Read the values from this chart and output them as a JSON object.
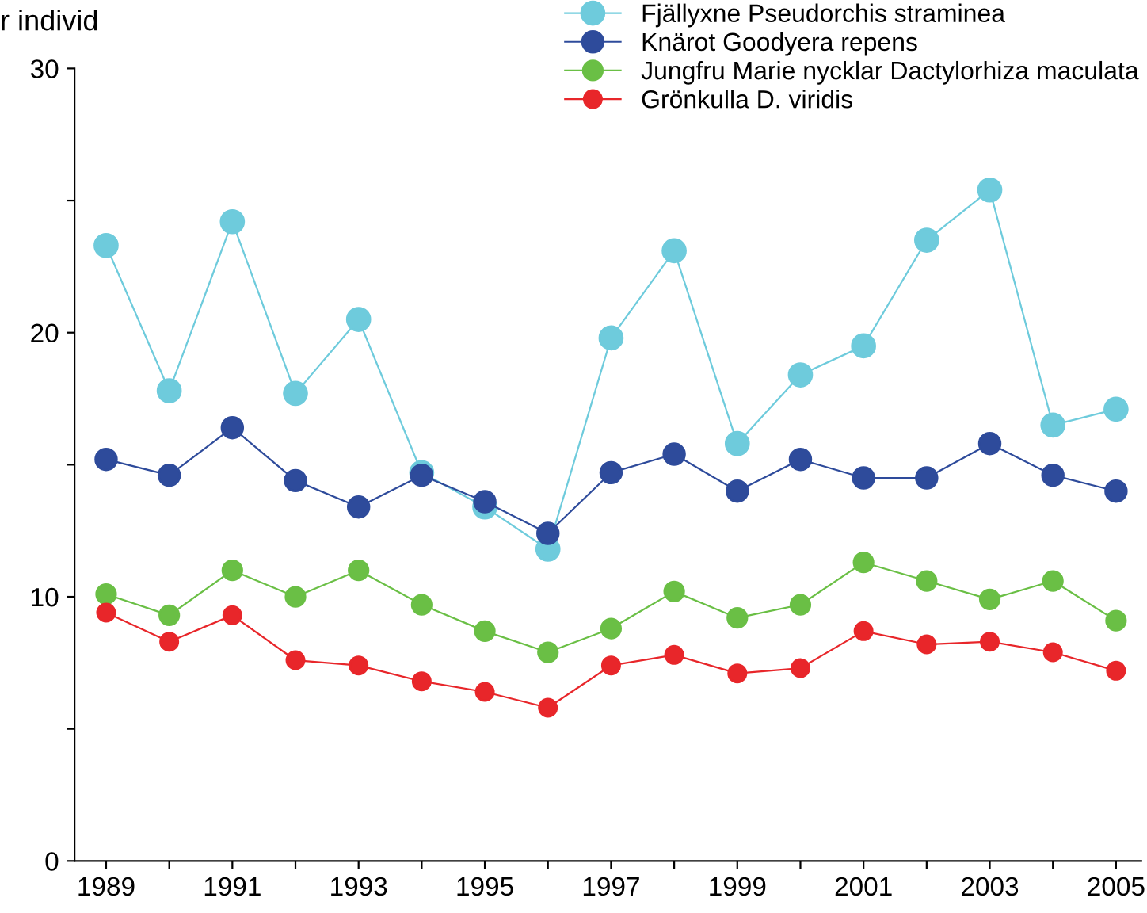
{
  "chart_data": {
    "type": "line",
    "ylabel": "r individ",
    "x": [
      1989,
      1990,
      1991,
      1992,
      1993,
      1994,
      1995,
      1996,
      1997,
      1998,
      1999,
      2000,
      2001,
      2002,
      2003,
      2004,
      2005
    ],
    "series": [
      {
        "name": "Fjällyxne Pseudorchis straminea",
        "color": "#6ecbdc",
        "values": [
          23.3,
          17.8,
          24.2,
          17.7,
          20.5,
          14.7,
          13.4,
          11.8,
          19.8,
          23.1,
          15.8,
          18.4,
          19.5,
          23.5,
          25.4,
          16.5,
          17.1
        ]
      },
      {
        "name": "Knärot Goodyera repens",
        "color": "#2e4b9b",
        "values": [
          15.2,
          14.6,
          16.4,
          14.4,
          13.4,
          14.6,
          13.6,
          12.4,
          14.7,
          15.4,
          14.0,
          15.2,
          14.5,
          14.5,
          15.8,
          14.6,
          14.0
        ]
      },
      {
        "name": "Jungfru Marie nycklar Dactylorhiza maculata",
        "color": "#6abf45",
        "values": [
          10.1,
          9.3,
          11.0,
          10.0,
          11.0,
          9.7,
          8.7,
          7.9,
          8.8,
          10.2,
          9.2,
          9.7,
          11.3,
          10.6,
          9.9,
          10.6,
          9.1
        ]
      },
      {
        "name": "Grönkulla D. viridis",
        "color": "#e8262a",
        "values": [
          9.4,
          8.3,
          9.3,
          7.6,
          7.4,
          6.8,
          6.4,
          5.8,
          7.4,
          7.8,
          7.1,
          7.3,
          8.7,
          8.2,
          8.3,
          7.9,
          7.2
        ]
      }
    ],
    "xlim": [
      1988.5,
      2005.4
    ],
    "ylim": [
      0,
      30
    ],
    "xticks": [
      1989,
      {
        "value": 1990,
        "label": null
      },
      1991,
      {
        "value": 1992,
        "label": null
      },
      1993,
      {
        "value": 1994,
        "label": null
      },
      1995,
      {
        "value": 1996,
        "label": null
      },
      1997,
      {
        "value": 1998,
        "label": null
      },
      1999,
      {
        "value": 2000,
        "label": null
      },
      2001,
      {
        "value": 2002,
        "label": null
      },
      2003,
      {
        "value": 2004,
        "label": null
      },
      2005
    ],
    "yticks": [
      0,
      {
        "value": 5,
        "label": null
      },
      10,
      {
        "value": 15,
        "label": null
      },
      20,
      {
        "value": 25,
        "label": null
      },
      30
    ],
    "grid": false,
    "legend": "top right",
    "marker": "circle",
    "line_style": "solid"
  }
}
